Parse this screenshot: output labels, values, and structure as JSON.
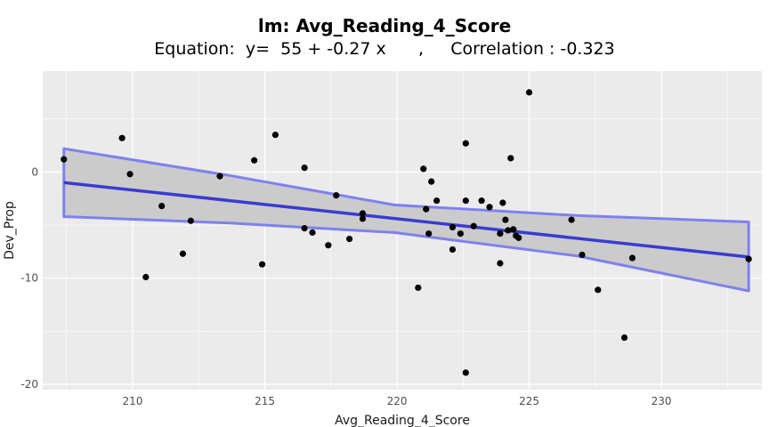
{
  "chart_data": {
    "type": "scatter",
    "title": "lm: Avg_Reading_4_Score",
    "subtitle": "Equation:  y=  55 + -0.27 x      ,     Correlation : -0.323",
    "xlabel": "Avg_Reading_4_Score",
    "ylabel": "Dev_Prop",
    "xlim": [
      206.6,
      233.8
    ],
    "ylim": [
      -20.5,
      9.5
    ],
    "x_ticks": [
      210,
      215,
      220,
      225,
      230
    ],
    "y_ticks": [
      0,
      -10,
      -20
    ],
    "grid": true,
    "points": [
      [
        207.4,
        1.2
      ],
      [
        209.6,
        3.2
      ],
      [
        209.9,
        -0.2
      ],
      [
        210.5,
        -9.9
      ],
      [
        211.1,
        -3.2
      ],
      [
        211.9,
        -7.7
      ],
      [
        212.2,
        -4.6
      ],
      [
        213.3,
        -0.4
      ],
      [
        214.6,
        1.1
      ],
      [
        214.9,
        -8.7
      ],
      [
        215.4,
        3.5
      ],
      [
        216.5,
        0.4
      ],
      [
        216.5,
        -5.3
      ],
      [
        216.8,
        -5.7
      ],
      [
        217.4,
        -6.9
      ],
      [
        217.7,
        -2.2
      ],
      [
        218.2,
        -6.3
      ],
      [
        218.7,
        -4.4
      ],
      [
        218.7,
        -3.9
      ],
      [
        220.8,
        -10.9
      ],
      [
        221.0,
        0.3
      ],
      [
        221.1,
        -3.5
      ],
      [
        221.2,
        -5.8
      ],
      [
        221.3,
        -0.9
      ],
      [
        221.5,
        -2.7
      ],
      [
        222.1,
        -7.3
      ],
      [
        222.1,
        -5.2
      ],
      [
        222.4,
        -5.8
      ],
      [
        222.6,
        2.7
      ],
      [
        222.6,
        -2.7
      ],
      [
        222.6,
        -18.9
      ],
      [
        222.9,
        -5.1
      ],
      [
        223.2,
        -2.7
      ],
      [
        223.5,
        -3.3
      ],
      [
        223.9,
        -5.8
      ],
      [
        223.9,
        -8.6
      ],
      [
        224.0,
        -2.9
      ],
      [
        224.1,
        -4.5
      ],
      [
        224.3,
        1.3
      ],
      [
        224.4,
        -5.4
      ],
      [
        224.5,
        -6.0
      ],
      [
        224.6,
        -6.2
      ],
      [
        224.2,
        -5.5
      ],
      [
        225.0,
        7.5
      ],
      [
        226.6,
        -4.5
      ],
      [
        227.0,
        -7.8
      ],
      [
        227.6,
        -11.1
      ],
      [
        228.6,
        -15.6
      ],
      [
        228.9,
        -8.1
      ],
      [
        233.3,
        -8.2
      ]
    ],
    "fit_line": {
      "x": [
        207.4,
        233.3
      ],
      "y": [
        -1.0,
        -8.0
      ]
    },
    "confidence_band": {
      "x": [
        207.4,
        213.6,
        219.9,
        226.8,
        233.3
      ],
      "upper": [
        2.2,
        -0.3,
        -3.1,
        -4.1,
        -4.7
      ],
      "lower": [
        -4.2,
        -4.8,
        -5.7,
        -7.9,
        -11.2
      ]
    },
    "colors": {
      "panel": "#ebebeb",
      "grid": "#ffffff",
      "points": "#000000",
      "fit_line": "#3b3bd1",
      "band_fill": "#c8c8c8",
      "band_edge": "#8080ee"
    }
  }
}
